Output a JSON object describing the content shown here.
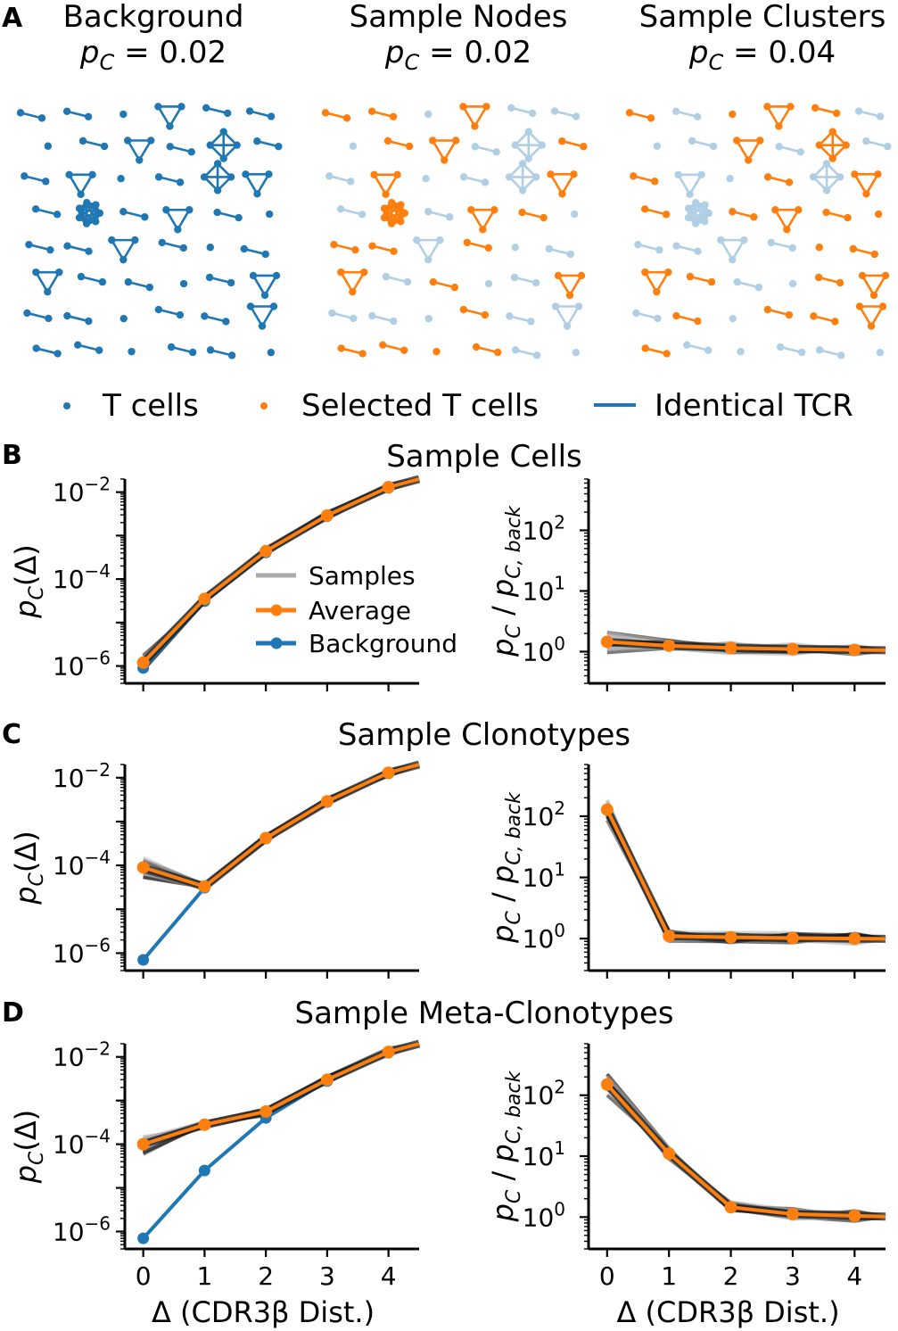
{
  "colors": {
    "t_cell": "#1f77b4",
    "selected": "#ff7f0e",
    "sample_line": "#aaaaaa",
    "sample_dark": "#222222"
  },
  "panel_a": {
    "letter": "A",
    "panels": [
      {
        "title": "Background",
        "pc_value": "0.02"
      },
      {
        "title": "Sample Nodes",
        "pc_value": "0.02"
      },
      {
        "title": "Sample Clusters",
        "pc_value": "0.04"
      }
    ],
    "pc_prefix": "= ",
    "legend": {
      "t_cells": "T cells",
      "selected": "Selected T cells",
      "identical": "Identical TCR"
    }
  },
  "chart_data": [
    {
      "panel": "B",
      "title": "Sample Cells",
      "type": "line",
      "yscale": "log",
      "ylabel": "p_C(Δ)",
      "x": [
        0,
        1,
        2,
        3,
        4
      ],
      "xlim": [
        -0.3,
        4.5
      ],
      "ylim": [
        4e-07,
        0.02
      ],
      "yticks": [
        "10^-2",
        "10^-4",
        "10^-6"
      ],
      "series": [
        {
          "name": "Samples",
          "values": [
            1.1e-06,
            3.5e-05,
            0.00043,
            0.0029,
            0.013
          ]
        },
        {
          "name": "Average",
          "values": [
            1.2e-06,
            3.5e-05,
            0.00044,
            0.0029,
            0.013
          ]
        },
        {
          "name": "Background",
          "values": [
            9e-07,
            3.1e-05,
            0.00041,
            0.0028,
            0.0125
          ]
        }
      ],
      "legend": [
        "Samples",
        "Average",
        "Background"
      ]
    },
    {
      "panel": "B",
      "type": "line",
      "yscale": "log",
      "ylabel": "p_C / p_C,back",
      "x": [
        0,
        1,
        2,
        3,
        4
      ],
      "xlim": [
        -0.3,
        4.5
      ],
      "ylim": [
        0.3,
        700
      ],
      "yticks": [
        "10^2",
        "10^1",
        "10^0"
      ],
      "series": [
        {
          "name": "Average",
          "values": [
            1.45,
            1.25,
            1.15,
            1.1,
            1.07
          ]
        }
      ]
    },
    {
      "panel": "C",
      "title": "Sample Clonotypes",
      "type": "line",
      "yscale": "log",
      "ylabel": "p_C(Δ)",
      "x": [
        0,
        1,
        2,
        3,
        4
      ],
      "xlim": [
        -0.3,
        4.5
      ],
      "ylim": [
        4e-07,
        0.02
      ],
      "yticks": [
        "10^-2",
        "10^-4",
        "10^-6"
      ],
      "series": [
        {
          "name": "Average",
          "values": [
            9e-05,
            3.3e-05,
            0.00042,
            0.0029,
            0.013
          ]
        },
        {
          "name": "Background",
          "values": [
            7e-07,
            3.1e-05,
            0.00041,
            0.0028,
            0.0125
          ]
        }
      ]
    },
    {
      "panel": "C",
      "type": "line",
      "yscale": "log",
      "ylabel": "p_C / p_C,back",
      "x": [
        0,
        1,
        2,
        3,
        4
      ],
      "xlim": [
        -0.3,
        4.5
      ],
      "ylim": [
        0.3,
        700
      ],
      "yticks": [
        "10^2",
        "10^1",
        "10^0"
      ],
      "series": [
        {
          "name": "Average",
          "values": [
            128,
            1.1,
            1.05,
            1.02,
            1.0
          ]
        }
      ]
    },
    {
      "panel": "D",
      "title": "Sample Meta-Clonotypes",
      "type": "line",
      "yscale": "log",
      "ylabel": "p_C(Δ)",
      "xlabel": "Δ (CDR3β Dist.)",
      "x": [
        0,
        1,
        2,
        3,
        4
      ],
      "xlim": [
        -0.3,
        4.5
      ],
      "ylim": [
        4e-07,
        0.02
      ],
      "yticks": [
        "10^-2",
        "10^-4",
        "10^-6"
      ],
      "xticks": [
        "0",
        "1",
        "2",
        "3",
        "4"
      ],
      "series": [
        {
          "name": "Average",
          "values": [
            0.0001,
            0.00028,
            0.00056,
            0.003,
            0.013
          ]
        },
        {
          "name": "Background",
          "values": [
            7e-07,
            2.5e-05,
            0.0004,
            0.0028,
            0.0125
          ]
        }
      ]
    },
    {
      "panel": "D",
      "type": "line",
      "yscale": "log",
      "ylabel": "p_C / p_C,back",
      "xlabel": "Δ (CDR3β Dist.)",
      "x": [
        0,
        1,
        2,
        3,
        4
      ],
      "xlim": [
        -0.3,
        4.5
      ],
      "ylim": [
        0.3,
        700
      ],
      "yticks": [
        "10^2",
        "10^1",
        "10^0"
      ],
      "xticks": [
        "0",
        "1",
        "2",
        "3",
        "4"
      ],
      "series": [
        {
          "name": "Average",
          "values": [
            150,
            11,
            1.45,
            1.12,
            1.05
          ]
        }
      ]
    }
  ]
}
